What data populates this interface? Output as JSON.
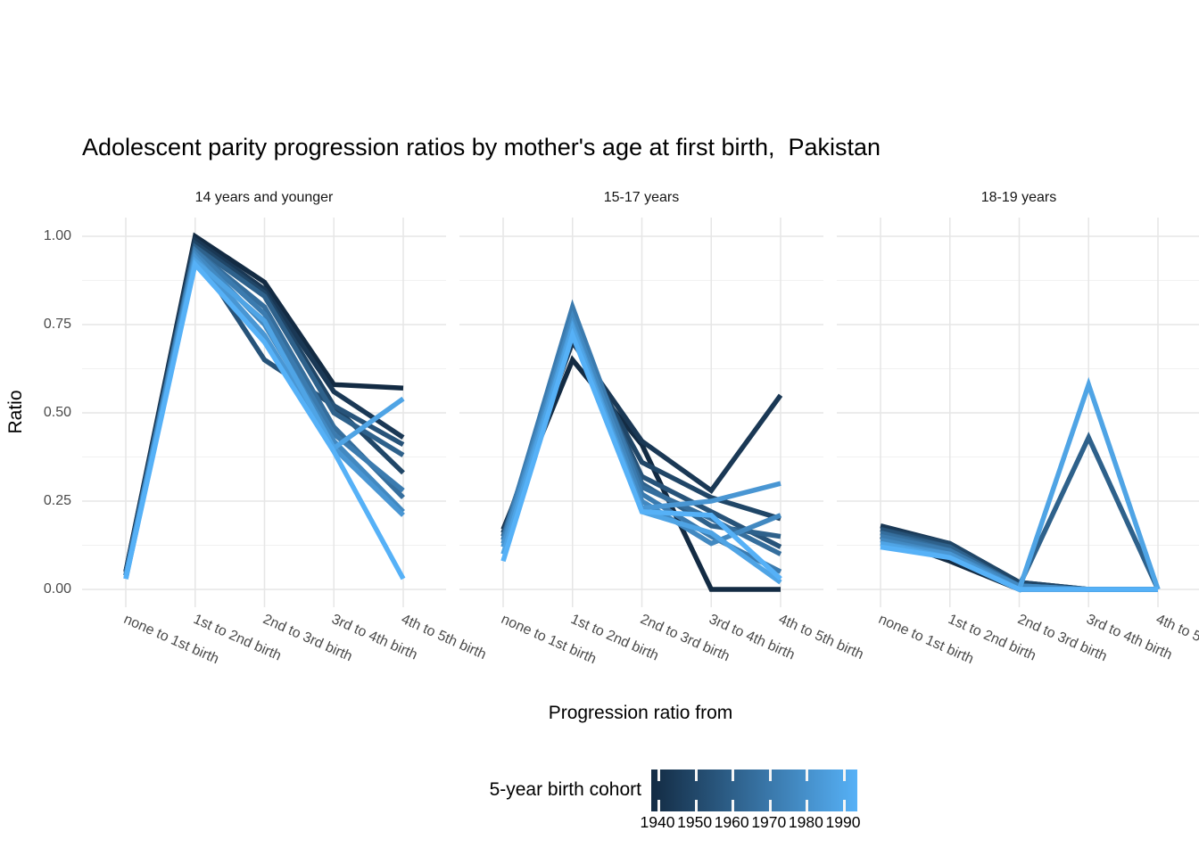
{
  "title": "Adolescent parity progression ratios by mother's age at first birth,  Pakistan",
  "facet_labels": [
    "14 years and younger",
    "15-17 years",
    "18-19 years"
  ],
  "y_axis": {
    "label": "Ratio",
    "tick_labels": [
      "1.00",
      "0.75",
      "0.50",
      "0.25",
      "0.00"
    ],
    "tick_values": [
      1.0,
      0.75,
      0.5,
      0.25,
      0.0
    ]
  },
  "x_axis": {
    "label": "Progression ratio from",
    "categories": [
      "none to 1st birth",
      "1st to 2nd birth",
      "2nd to 3rd birth",
      "3rd to 4th birth",
      "4th to 5th birth"
    ]
  },
  "legend": {
    "title": "5-year birth cohort",
    "tick_labels": [
      "1940",
      "1950",
      "1960",
      "1970",
      "1980",
      "1990"
    ],
    "gradient_low": "#132B43",
    "gradient_mid": "#356E9D",
    "gradient_high": "#56B1F7"
  },
  "colors": {
    "background": "#ffffff",
    "grid_major": "#e6e6e6",
    "grid_minor": "#f1f1f1",
    "text_dark": "#000000",
    "text_gray": "#4a4a4a"
  },
  "chart_data": {
    "type": "line",
    "title": "Adolescent parity progression ratios by mother's age at first birth,  Pakistan",
    "xlabel": "Progression ratio from",
    "ylabel": "Ratio",
    "ylim": [
      0,
      1
    ],
    "grid": true,
    "legend_position": "bottom",
    "color_scale": {
      "low": "#132B43",
      "high": "#56B1F7",
      "domain": [
        1940,
        1990
      ],
      "title": "5-year birth cohort"
    },
    "categories": [
      "none to 1st birth",
      "1st to 2nd birth",
      "2nd to 3rd birth",
      "3rd to 4th birth",
      "4th to 5th birth"
    ],
    "facets": [
      {
        "name": "14 years and younger",
        "series": [
          {
            "cohort": 1940,
            "values": [
              0.05,
              1.0,
              0.87,
              0.58,
              0.57
            ]
          },
          {
            "cohort": 1945,
            "values": [
              0.05,
              0.99,
              0.85,
              0.56,
              0.43
            ]
          },
          {
            "cohort": 1950,
            "values": [
              0.04,
              0.98,
              0.84,
              0.52,
              0.33
            ]
          },
          {
            "cohort": 1955,
            "values": [
              0.04,
              0.95,
              0.65,
              0.52,
              0.41
            ]
          },
          {
            "cohort": 1960,
            "values": [
              0.04,
              0.97,
              0.83,
              0.5,
              0.38
            ]
          },
          {
            "cohort": 1965,
            "values": [
              0.04,
              0.96,
              0.8,
              0.46,
              0.26
            ]
          },
          {
            "cohort": 1970,
            "values": [
              0.04,
              0.96,
              0.78,
              0.44,
              0.28
            ]
          },
          {
            "cohort": 1975,
            "values": [
              0.04,
              0.95,
              0.75,
              0.42,
              0.22
            ]
          },
          {
            "cohort": 1980,
            "values": [
              0.03,
              0.94,
              0.72,
              0.4,
              0.21
            ]
          },
          {
            "cohort": 1985,
            "values": [
              0.03,
              0.93,
              0.76,
              0.4,
              0.54
            ]
          },
          {
            "cohort": 1990,
            "values": [
              0.03,
              0.92,
              0.7,
              0.39,
              0.03
            ]
          }
        ]
      },
      {
        "name": "15-17 years",
        "series": [
          {
            "cohort": 1940,
            "values": [
              0.17,
              0.65,
              0.41,
              0.0,
              0.0
            ]
          },
          {
            "cohort": 1945,
            "values": [
              0.16,
              0.7,
              0.42,
              0.28,
              0.55
            ]
          },
          {
            "cohort": 1950,
            "values": [
              0.16,
              0.72,
              0.36,
              0.26,
              0.2
            ]
          },
          {
            "cohort": 1955,
            "values": [
              0.15,
              0.74,
              0.32,
              0.22,
              0.12
            ]
          },
          {
            "cohort": 1960,
            "values": [
              0.15,
              0.76,
              0.3,
              0.18,
              0.15
            ]
          },
          {
            "cohort": 1965,
            "values": [
              0.14,
              0.78,
              0.29,
              0.2,
              0.1
            ]
          },
          {
            "cohort": 1970,
            "values": [
              0.14,
              0.8,
              0.27,
              0.15,
              0.05
            ]
          },
          {
            "cohort": 1975,
            "values": [
              0.13,
              0.77,
              0.25,
              0.13,
              0.21
            ]
          },
          {
            "cohort": 1980,
            "values": [
              0.12,
              0.75,
              0.23,
              0.25,
              0.3
            ]
          },
          {
            "cohort": 1985,
            "values": [
              0.1,
              0.74,
              0.22,
              0.16,
              0.02
            ]
          },
          {
            "cohort": 1990,
            "values": [
              0.08,
              0.72,
              0.22,
              0.21,
              0.03
            ]
          }
        ]
      },
      {
        "name": "18-19 years",
        "series": [
          {
            "cohort": 1940,
            "values": [
              0.15,
              0.08,
              0.0,
              0.0,
              0.0
            ]
          },
          {
            "cohort": 1945,
            "values": [
              0.18,
              0.13,
              0.02,
              0.0,
              0.0
            ]
          },
          {
            "cohort": 1950,
            "values": [
              0.17,
              0.13,
              0.02,
              0.0,
              0.0
            ]
          },
          {
            "cohort": 1955,
            "values": [
              0.17,
              0.12,
              0.01,
              0.0,
              0.0
            ]
          },
          {
            "cohort": 1960,
            "values": [
              0.16,
              0.12,
              0.01,
              0.43,
              0.0
            ]
          },
          {
            "cohort": 1965,
            "values": [
              0.16,
              0.11,
              0.01,
              0.0,
              0.0
            ]
          },
          {
            "cohort": 1970,
            "values": [
              0.15,
              0.11,
              0.01,
              0.0,
              0.0
            ]
          },
          {
            "cohort": 1975,
            "values": [
              0.14,
              0.1,
              0.01,
              0.0,
              0.0
            ]
          },
          {
            "cohort": 1980,
            "values": [
              0.13,
              0.1,
              0.0,
              0.0,
              0.0
            ]
          },
          {
            "cohort": 1985,
            "values": [
              0.13,
              0.09,
              0.0,
              0.58,
              0.0
            ]
          },
          {
            "cohort": 1990,
            "values": [
              0.12,
              0.09,
              0.0,
              0.0,
              0.0
            ]
          }
        ]
      }
    ]
  }
}
